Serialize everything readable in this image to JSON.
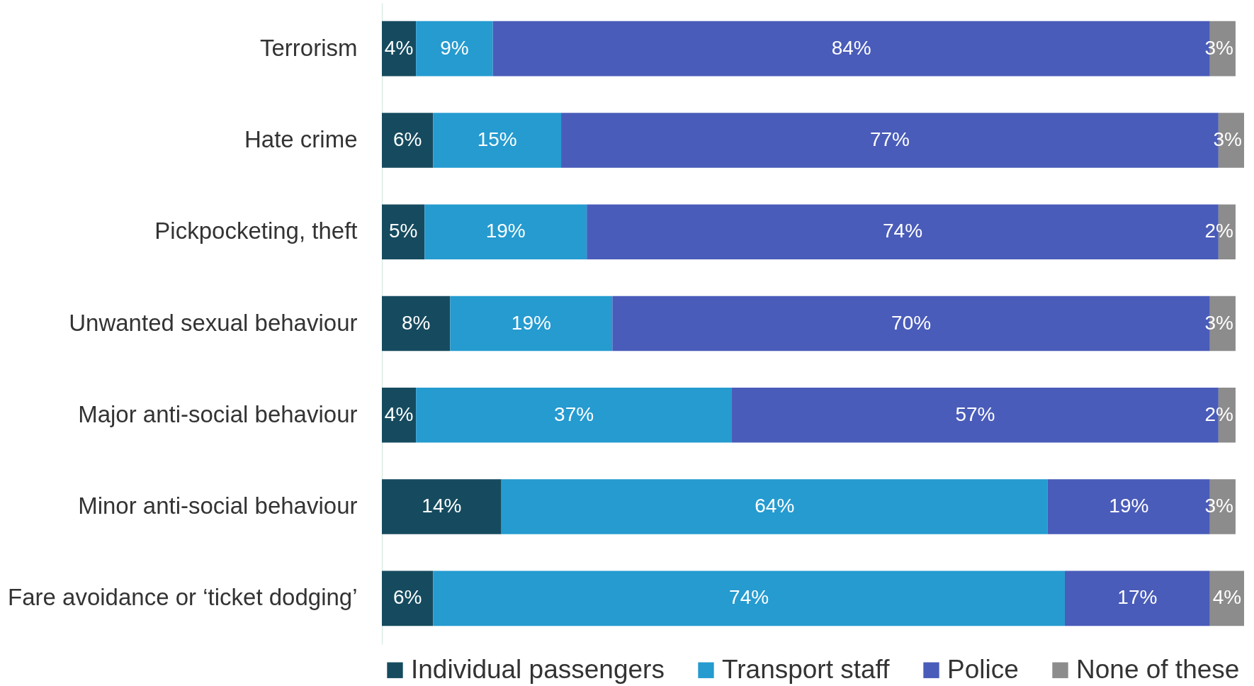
{
  "chart_data": {
    "type": "bar",
    "orientation": "horizontal",
    "stacked": true,
    "legend": "bottom",
    "grid": false,
    "categories": [
      "Terrorism",
      "Hate crime",
      "Pickpocketing, theft",
      "Unwanted sexual behaviour",
      "Major anti-social behaviour",
      "Minor anti-social behaviour",
      "Fare avoidance or ‘ticket dodging’"
    ],
    "series": [
      {
        "name": "Individual passengers",
        "color": "#164b5f",
        "values": [
          4,
          6,
          5,
          8,
          4,
          14,
          6
        ],
        "value_labels": [
          "4%",
          "6%",
          "5%",
          "8%",
          "4%",
          "14%",
          "6%"
        ]
      },
      {
        "name": "Transport staff",
        "color": "#259bd0",
        "values": [
          9,
          15,
          19,
          19,
          37,
          64,
          74
        ],
        "value_labels": [
          "9%",
          "15%",
          "19%",
          "19%",
          "37%",
          "64%",
          "74%"
        ]
      },
      {
        "name": "Police",
        "color": "#4a5cb9",
        "values": [
          84,
          77,
          74,
          70,
          57,
          19,
          17
        ],
        "value_labels": [
          "84%",
          "77%",
          "74%",
          "70%",
          "57%",
          "19%",
          "17%"
        ]
      },
      {
        "name": "None of these",
        "color": "#8c8c8c",
        "values": [
          3,
          3,
          2,
          3,
          2,
          3,
          4
        ],
        "value_labels": [
          "3%",
          "3%",
          "2%",
          "3%",
          "2%",
          "3%",
          "4%"
        ]
      }
    ]
  }
}
